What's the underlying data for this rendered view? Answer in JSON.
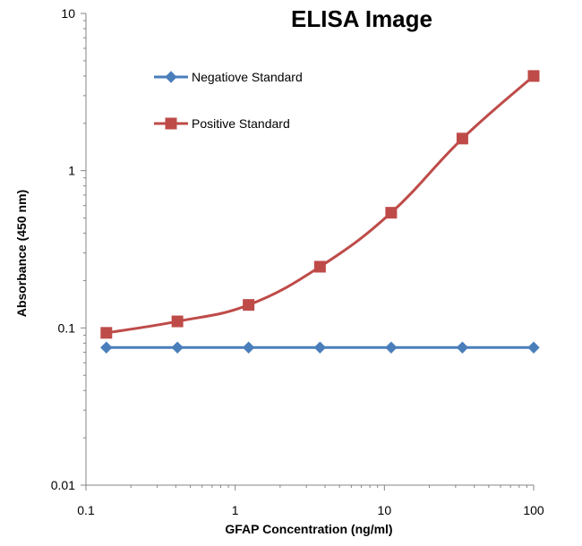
{
  "chart_data": {
    "type": "line",
    "title": "ELISA Image",
    "xlabel": "GFAP Concentration (ng/ml)",
    "ylabel": "Absorbance (450 nm)",
    "xscale": "log",
    "yscale": "log",
    "xlim": [
      0.1,
      100
    ],
    "ylim": [
      0.01,
      10
    ],
    "x_ticks": [
      0.1,
      1,
      10,
      100
    ],
    "x_tick_labels": [
      "0.1",
      "1",
      "10",
      "100"
    ],
    "y_ticks": [
      0.01,
      0.1,
      1,
      10
    ],
    "y_tick_labels": [
      "0.01",
      "0.1",
      "1",
      "10"
    ],
    "grid": false,
    "legend_position": "top-left",
    "series": [
      {
        "name": "Negatiove Standard",
        "color": "#4a7ebb",
        "marker": "diamond",
        "x": [
          0.137,
          0.41,
          1.23,
          3.7,
          11.1,
          33.3,
          100
        ],
        "y": [
          0.075,
          0.075,
          0.075,
          0.075,
          0.075,
          0.075,
          0.075
        ]
      },
      {
        "name": "Positive Standard",
        "color": "#be4b48",
        "marker": "square",
        "x": [
          0.137,
          0.41,
          1.23,
          3.7,
          11.1,
          33.3,
          100
        ],
        "y": [
          0.093,
          0.11,
          0.14,
          0.245,
          0.54,
          1.6,
          4.0
        ]
      }
    ]
  }
}
